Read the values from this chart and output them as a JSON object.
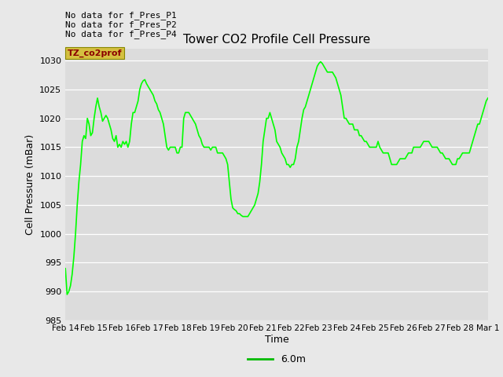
{
  "title": "Tower CO2 Profile Cell Pressure",
  "xlabel": "Time",
  "ylabel": "Cell Pressure (mBar)",
  "ylim": [
    985,
    1032
  ],
  "yticks": [
    985,
    990,
    995,
    1000,
    1005,
    1010,
    1015,
    1020,
    1025,
    1030
  ],
  "line_color": "#00ff00",
  "line_width": 1.2,
  "bg_color": "#e8e8e8",
  "plot_bg_color": "#dcdcdc",
  "legend_label": "6.0m",
  "legend_line_color": "#00bb00",
  "annotations": [
    "No data for f_Pres_P1",
    "No data for f_Pres_P2",
    "No data for f_Pres_P4"
  ],
  "box_label": "TZ_co2prof",
  "x_tick_labels": [
    "Feb 14",
    "Feb 15",
    "Feb 16",
    "Feb 17",
    "Feb 18",
    "Feb 19",
    "Feb 20",
    "Feb 21",
    "Feb 22",
    "Feb 23",
    "Feb 24",
    "Feb 25",
    "Feb 26",
    "Feb 27",
    "Feb 28",
    "Mar 1"
  ],
  "y_data": [
    994,
    989.5,
    990,
    991,
    993,
    996,
    1000,
    1005,
    1009,
    1012,
    1016,
    1017,
    1016.5,
    1020,
    1019,
    1017,
    1017.5,
    1020,
    1022,
    1023.5,
    1022,
    1021,
    1019.5,
    1020,
    1020.5,
    1020,
    1019,
    1018,
    1016.5,
    1016,
    1017,
    1015,
    1015.5,
    1015,
    1016,
    1015.5,
    1016,
    1015,
    1016,
    1019,
    1021,
    1021,
    1022,
    1023,
    1025,
    1026,
    1026.5,
    1026.7,
    1026,
    1025.5,
    1025,
    1024.5,
    1024,
    1023,
    1022.5,
    1021.5,
    1021,
    1020,
    1019,
    1017,
    1015,
    1014.5,
    1015,
    1015,
    1015,
    1015,
    1014,
    1014,
    1015,
    1015,
    1020,
    1021,
    1021,
    1021,
    1020.5,
    1020,
    1019.5,
    1019,
    1018,
    1017,
    1016.5,
    1015.5,
    1015,
    1015,
    1015,
    1015,
    1014.5,
    1015,
    1015,
    1015,
    1014,
    1014,
    1014,
    1014,
    1013.5,
    1013,
    1012,
    1009,
    1006,
    1004.5,
    1004.2,
    1004,
    1003.5,
    1003.5,
    1003.2,
    1003,
    1003,
    1003,
    1003,
    1003.5,
    1004,
    1004.5,
    1005,
    1006,
    1007,
    1009,
    1012,
    1016,
    1018,
    1020,
    1020,
    1021,
    1020,
    1019,
    1018,
    1016,
    1015.5,
    1015,
    1014,
    1013.5,
    1013,
    1012,
    1012,
    1011.5,
    1012,
    1012,
    1013,
    1015,
    1016,
    1018,
    1020,
    1021.5,
    1022,
    1023,
    1024,
    1025,
    1026,
    1027,
    1028,
    1029,
    1029.5,
    1029.8,
    1029.5,
    1029,
    1028.5,
    1028,
    1028,
    1028,
    1028,
    1027.5,
    1027,
    1026,
    1025,
    1024,
    1022,
    1020,
    1020,
    1019.5,
    1019,
    1019,
    1019,
    1018,
    1018,
    1018,
    1017,
    1017,
    1016.5,
    1016,
    1016,
    1015.5,
    1015,
    1015,
    1015,
    1015,
    1015,
    1016,
    1015,
    1014.5,
    1014,
    1014,
    1014,
    1014,
    1013,
    1012,
    1012,
    1012,
    1012,
    1012.5,
    1013,
    1013,
    1013,
    1013,
    1013.5,
    1014,
    1014,
    1014,
    1015,
    1015,
    1015,
    1015,
    1015,
    1015.5,
    1016,
    1016,
    1016,
    1016,
    1015.5,
    1015,
    1015,
    1015,
    1015,
    1014.5,
    1014,
    1014,
    1013.5,
    1013,
    1013,
    1013,
    1012.5,
    1012,
    1012,
    1012,
    1013,
    1013,
    1013.5,
    1014,
    1014,
    1014,
    1014,
    1014,
    1015,
    1016,
    1017,
    1018,
    1019,
    1019,
    1020,
    1021,
    1022,
    1023,
    1023.5
  ]
}
